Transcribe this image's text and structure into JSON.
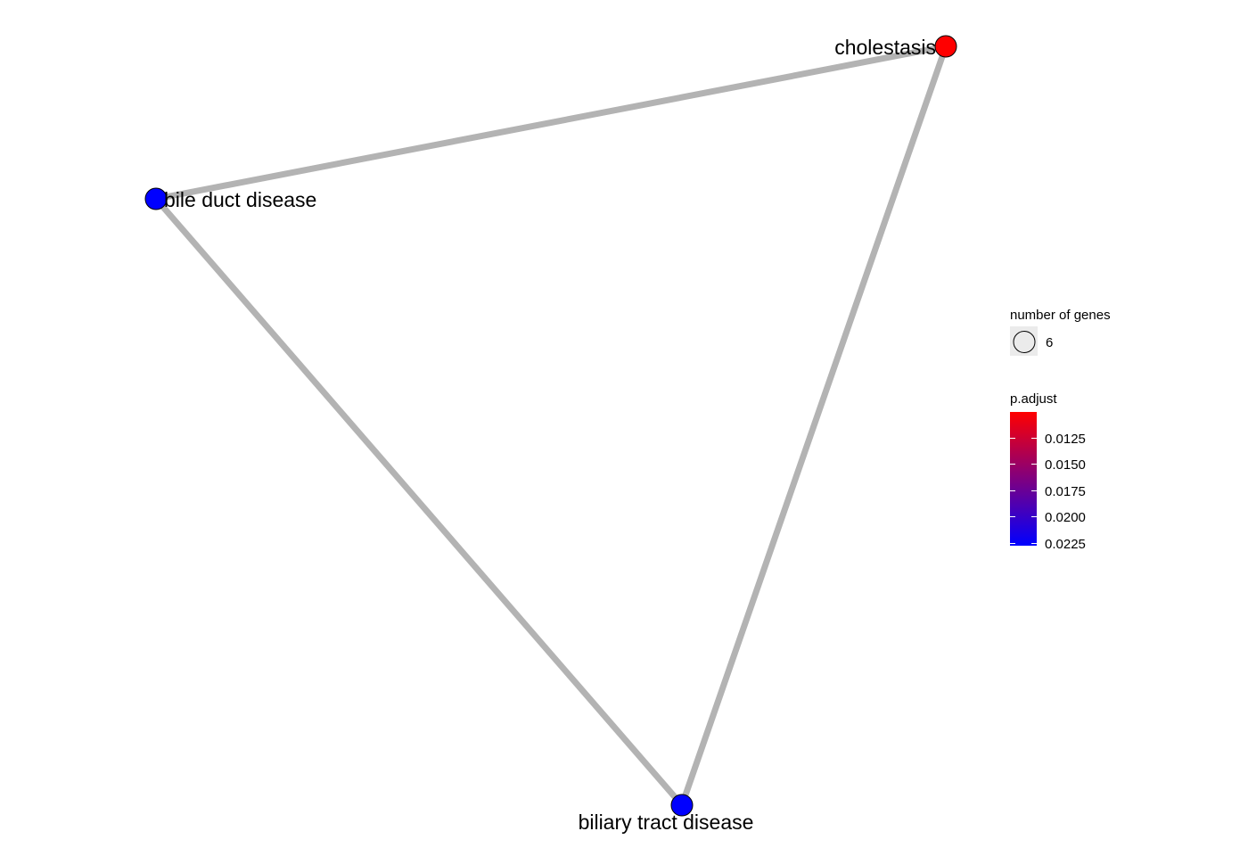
{
  "network": {
    "nodes": [
      {
        "id": "cholestasis",
        "label": "cholestasis",
        "color": "#FF0000"
      },
      {
        "id": "bile-duct-disease",
        "label": "bile duct disease",
        "color": "#0000FF"
      },
      {
        "id": "biliary-tract-disease",
        "label": "biliary tract disease",
        "color": "#0000FF"
      }
    ],
    "edges": [
      {
        "source": "cholestasis",
        "target": "bile-duct-disease"
      },
      {
        "source": "cholestasis",
        "target": "biliary-tract-disease"
      },
      {
        "source": "bile-duct-disease",
        "target": "biliary-tract-disease"
      }
    ],
    "edge_color": "#B3B3B3"
  },
  "legend": {
    "size": {
      "title": "number of genes",
      "items": [
        {
          "label": "6"
        }
      ]
    },
    "color": {
      "title": "p.adjust",
      "low_color": "#FF0000",
      "high_color": "#0000FF",
      "ticks": [
        "0.0125",
        "0.0150",
        "0.0175",
        "0.0200",
        "0.0225"
      ]
    }
  }
}
